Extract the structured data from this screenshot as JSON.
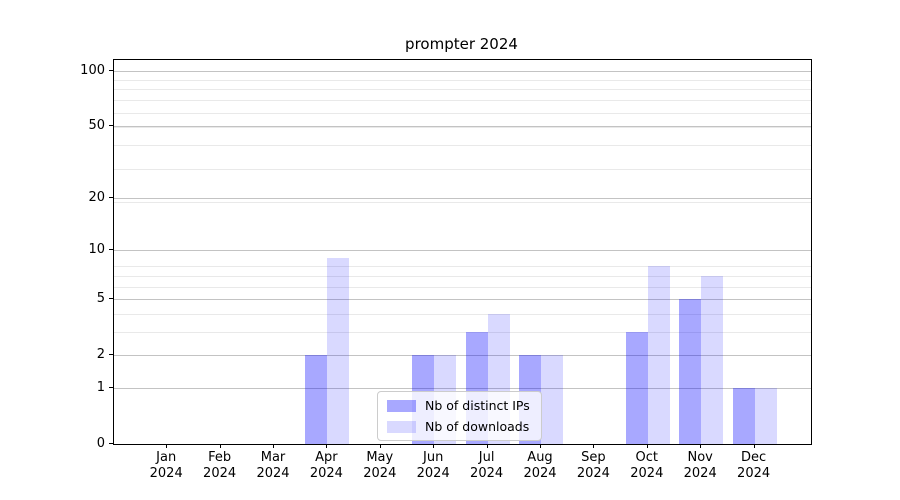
{
  "title": "prompter 2024",
  "chart_data": {
    "type": "bar",
    "title": "prompter 2024",
    "categories": [
      "Jan 2024",
      "Feb 2024",
      "Mar 2024",
      "Apr 2024",
      "May 2024",
      "Jun 2024",
      "Jul 2024",
      "Aug 2024",
      "Sep 2024",
      "Oct 2024",
      "Nov 2024",
      "Dec 2024"
    ],
    "x_months": [
      "Jan",
      "Feb",
      "Mar",
      "Apr",
      "May",
      "Jun",
      "Jul",
      "Aug",
      "Sep",
      "Oct",
      "Nov",
      "Dec"
    ],
    "x_year": "2024",
    "series": [
      {
        "name": "Nb of distinct IPs",
        "color": "rgba(0,0,255,0.34)",
        "values": [
          0,
          0,
          0,
          2,
          0,
          2,
          3,
          2,
          0,
          3,
          5,
          1
        ]
      },
      {
        "name": "Nb of downloads",
        "color": "rgba(0,0,255,0.15)",
        "values": [
          0,
          0,
          0,
          9,
          0,
          2,
          4,
          2,
          0,
          8,
          7,
          1
        ]
      }
    ],
    "yscale": "log1p",
    "yticks": [
      0,
      1,
      2,
      5,
      10,
      20,
      50,
      100
    ],
    "ylim": [
      0,
      114
    ],
    "grid": true,
    "legend_position": "lower center",
    "colors": {
      "major_grid": "#c3c3c3",
      "minor_grid": "#e9e9e9",
      "spine": "#000000",
      "legend_border": "#cccccc"
    }
  }
}
